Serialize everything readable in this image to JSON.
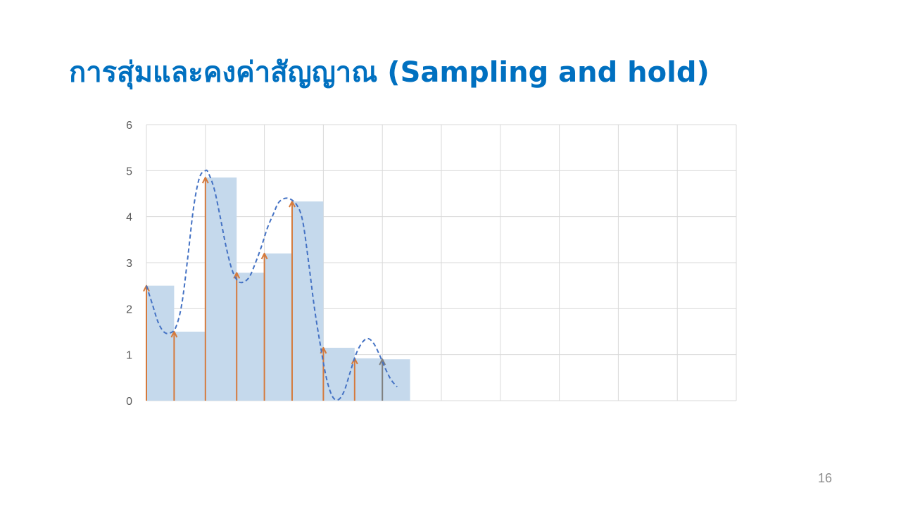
{
  "slide": {
    "title": "การสุ่มและคงค่าสัญญาณ (Sampling and hold)",
    "page_number": "16"
  },
  "colors": {
    "title": "#0070C0",
    "hold_bar": "#C5D9EC",
    "sample_arrow": "#D57A3C",
    "last_arrow": "#7F7F7F",
    "signal_curve": "#4472C4",
    "grid": "#D9D9D9",
    "tick_label": "#595959"
  },
  "chart_data": {
    "type": "area",
    "title": "การสุ่มและคงค่าสัญญาณ (Sampling and hold)",
    "xlabel": "",
    "ylabel": "",
    "ylim": [
      0,
      6
    ],
    "xlim": [
      0,
      10
    ],
    "yticks": [
      "0",
      "1",
      "2",
      "3",
      "4",
      "5",
      "6"
    ],
    "grid": true,
    "legend": "none",
    "sample_and_hold": {
      "sample_x": [
        0,
        0.47,
        1.0,
        1.53,
        2.0,
        2.47,
        3.0,
        3.53,
        4.0
      ],
      "sample_values": [
        2.5,
        1.5,
        4.85,
        2.78,
        3.2,
        4.33,
        1.15,
        0.92,
        0.9
      ],
      "hold_end_x": 4.47
    },
    "signal": {
      "line_style": "dashed",
      "points": [
        [
          0,
          2.5
        ],
        [
          0.1,
          2.1
        ],
        [
          0.2,
          1.7
        ],
        [
          0.3,
          1.49
        ],
        [
          0.4,
          1.47
        ],
        [
          0.5,
          1.6
        ],
        [
          0.6,
          2.1
        ],
        [
          0.7,
          3.1
        ],
        [
          0.8,
          4.2
        ],
        [
          0.9,
          4.85
        ],
        [
          1.0,
          5.0
        ],
        [
          1.05,
          4.95
        ],
        [
          1.15,
          4.6
        ],
        [
          1.25,
          4.0
        ],
        [
          1.35,
          3.35
        ],
        [
          1.45,
          2.85
        ],
        [
          1.55,
          2.6
        ],
        [
          1.65,
          2.58
        ],
        [
          1.75,
          2.7
        ],
        [
          1.85,
          3.0
        ],
        [
          1.95,
          3.35
        ],
        [
          2.05,
          3.75
        ],
        [
          2.15,
          4.05
        ],
        [
          2.25,
          4.32
        ],
        [
          2.4,
          4.4
        ],
        [
          2.55,
          4.25
        ],
        [
          2.65,
          3.9
        ],
        [
          2.75,
          3.0
        ],
        [
          2.85,
          2.0
        ],
        [
          2.95,
          1.2
        ],
        [
          3.05,
          0.5
        ],
        [
          3.15,
          0.1
        ],
        [
          3.25,
          0.02
        ],
        [
          3.35,
          0.2
        ],
        [
          3.45,
          0.6
        ],
        [
          3.55,
          1.0
        ],
        [
          3.65,
          1.25
        ],
        [
          3.75,
          1.35
        ],
        [
          3.85,
          1.25
        ],
        [
          3.95,
          1.0
        ],
        [
          4.05,
          0.7
        ],
        [
          4.15,
          0.45
        ],
        [
          4.25,
          0.3
        ]
      ]
    }
  }
}
